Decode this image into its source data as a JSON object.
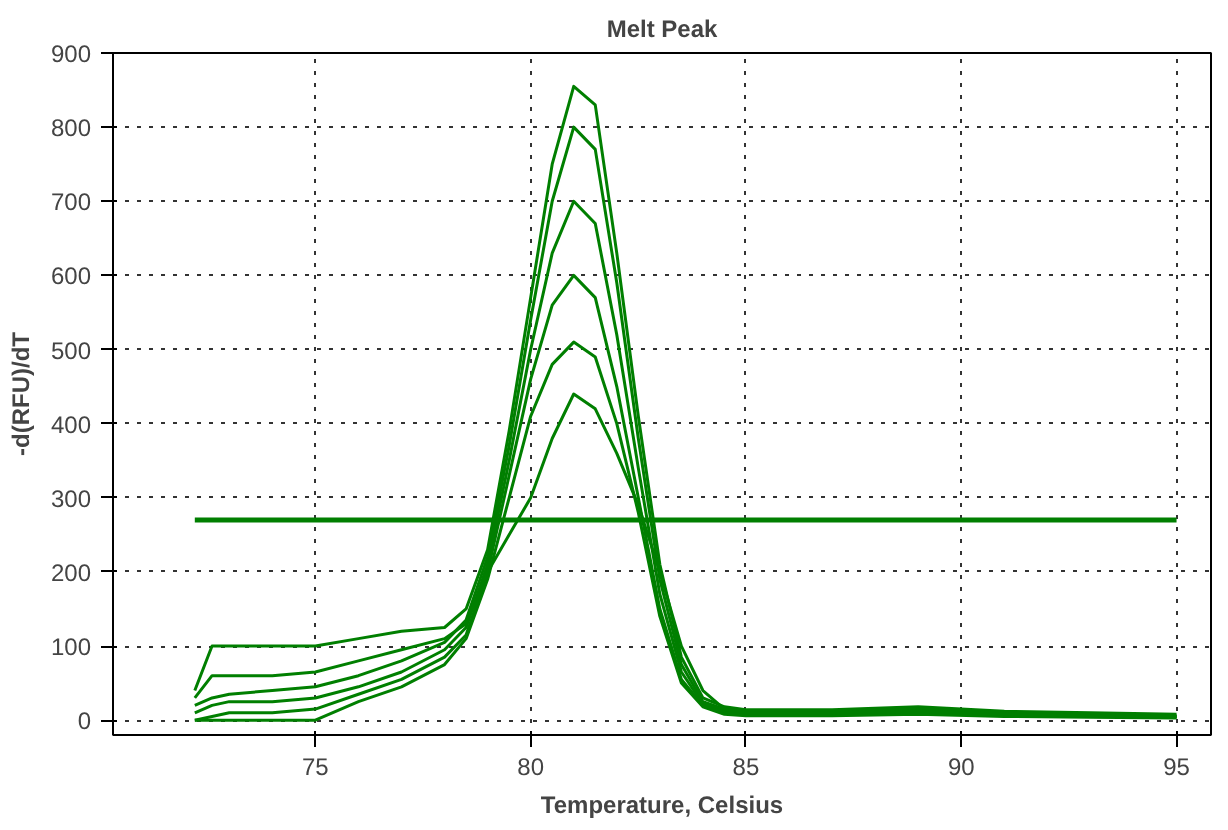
{
  "chart_data": {
    "type": "line",
    "title": "Melt Peak",
    "xlabel": "Temperature, Celsius",
    "ylabel": "-d(RFU)/dT",
    "x": [
      72.2,
      72.6,
      73,
      74,
      75,
      76,
      77,
      78,
      78.5,
      79,
      79.5,
      80,
      80.5,
      81,
      81.5,
      82,
      82.5,
      83,
      83.5,
      84,
      84.5,
      85,
      87,
      89,
      91,
      93,
      95
    ],
    "series": [
      {
        "color": "#007f00",
        "values": [
          40,
          100,
          100,
          100,
          100,
          110,
          120,
          125,
          150,
          230,
          390,
          570,
          750,
          855,
          830,
          630,
          410,
          210,
          85,
          30,
          18,
          14,
          14,
          18,
          12,
          10,
          8
        ]
      },
      {
        "color": "#007f00",
        "values": [
          20,
          30,
          35,
          40,
          45,
          60,
          80,
          105,
          135,
          220,
          370,
          540,
          700,
          800,
          770,
          590,
          380,
          190,
          75,
          25,
          15,
          12,
          12,
          15,
          10,
          8,
          6
        ]
      },
      {
        "color": "#007f00",
        "values": [
          10,
          20,
          25,
          25,
          30,
          45,
          65,
          95,
          125,
          210,
          350,
          500,
          630,
          700,
          670,
          520,
          340,
          170,
          65,
          22,
          12,
          10,
          10,
          12,
          8,
          6,
          5
        ]
      },
      {
        "color": "#007f00",
        "values": [
          0,
          5,
          10,
          10,
          15,
          35,
          55,
          85,
          115,
          200,
          330,
          460,
          560,
          600,
          570,
          450,
          300,
          150,
          55,
          20,
          10,
          8,
          8,
          10,
          6,
          5,
          4
        ]
      },
      {
        "color": "#007f00",
        "values": [
          0,
          0,
          0,
          0,
          0,
          25,
          45,
          75,
          110,
          190,
          300,
          410,
          480,
          510,
          490,
          400,
          280,
          140,
          50,
          18,
          8,
          6,
          6,
          8,
          5,
          4,
          3
        ]
      },
      {
        "color": "#007f00",
        "values": [
          30,
          60,
          60,
          60,
          65,
          80,
          95,
          110,
          130,
          200,
          250,
          300,
          380,
          440,
          420,
          360,
          290,
          200,
          100,
          40,
          15,
          10,
          10,
          12,
          8,
          6,
          5
        ]
      }
    ],
    "ref_lines": [
      {
        "axis": "y",
        "value": 270,
        "color": "#007f00"
      }
    ],
    "xlim": [
      70.3,
      95.8
    ],
    "ylim": [
      -20,
      900
    ],
    "xticks": [
      75,
      80,
      85,
      90,
      95
    ],
    "yticks": [
      0,
      100,
      200,
      300,
      400,
      500,
      600,
      700,
      800,
      900
    ],
    "grid": true,
    "marker": "none",
    "line_style": "solid"
  }
}
